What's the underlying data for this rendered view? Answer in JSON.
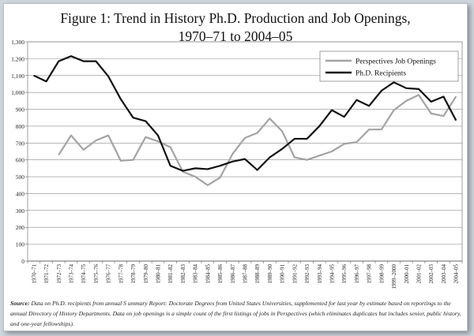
{
  "title_line1": "Figure 1: Trend in History Ph.D. Production and Job Openings,",
  "title_line2": "1970–71 to 2004–05",
  "source_label": "Source",
  "source_text": "Data on Ph.D. recipients from annual S ummary Report: Doctorate Degrees from United States Universities, supplemented for last year by estimate based on reportings to the annual  Directory of History Departments. Data on job openings is a simple count of the first listings of jobs in  Perspectives (which eliminates duplicates but includes senior, public history, and one-year fellowships).",
  "chart_data": {
    "type": "line",
    "ylim": [
      0,
      1300
    ],
    "yticks": [
      0,
      100,
      200,
      300,
      400,
      500,
      600,
      700,
      800,
      900,
      1000,
      1100,
      1200,
      1300
    ],
    "ytick_labels": [
      "0",
      "100",
      "200",
      "300",
      "400",
      "500",
      "600",
      "700",
      "800",
      "900",
      "1,000",
      "1,100",
      "1,200",
      "1,300"
    ],
    "grid": true,
    "legend_position": "top-right",
    "categories": [
      "1970–71",
      "1971–72",
      "1972–73",
      "1973–74",
      "1974–75",
      "1975–76",
      "1976–77",
      "1977–78",
      "1978–79",
      "1979–80",
      "1980–81",
      "1981–82",
      "1982–83",
      "1983–84",
      "1984–85",
      "1985–86",
      "1986–87",
      "1987–88",
      "1988–89",
      "1989–90",
      "1990–91",
      "1991–92",
      "1992–93",
      "1993–94",
      "1994–95",
      "1995–96",
      "1996–97",
      "1997–98",
      "1998–99",
      "1999–2000",
      "2000–01",
      "2001–02",
      "2002–03",
      "2003–04",
      "2004–05"
    ],
    "series": [
      {
        "name": "Perspectives Job Openings",
        "color": "#a3a3a3",
        "values": [
          null,
          null,
          630,
          745,
          660,
          715,
          745,
          595,
          600,
          735,
          710,
          675,
          530,
          500,
          450,
          495,
          635,
          730,
          760,
          845,
          770,
          615,
          600,
          625,
          650,
          695,
          705,
          780,
          780,
          895,
          950,
          985,
          875,
          860,
          975
        ]
      },
      {
        "name": "Ph.D. Recipients",
        "color": "#111111",
        "values": [
          1100,
          1065,
          1185,
          1215,
          1185,
          1185,
          1095,
          960,
          850,
          830,
          745,
          565,
          535,
          550,
          545,
          565,
          590,
          605,
          540,
          615,
          665,
          725,
          725,
          800,
          895,
          855,
          955,
          920,
          1010,
          1060,
          1025,
          1020,
          945,
          975,
          835
        ]
      }
    ]
  }
}
